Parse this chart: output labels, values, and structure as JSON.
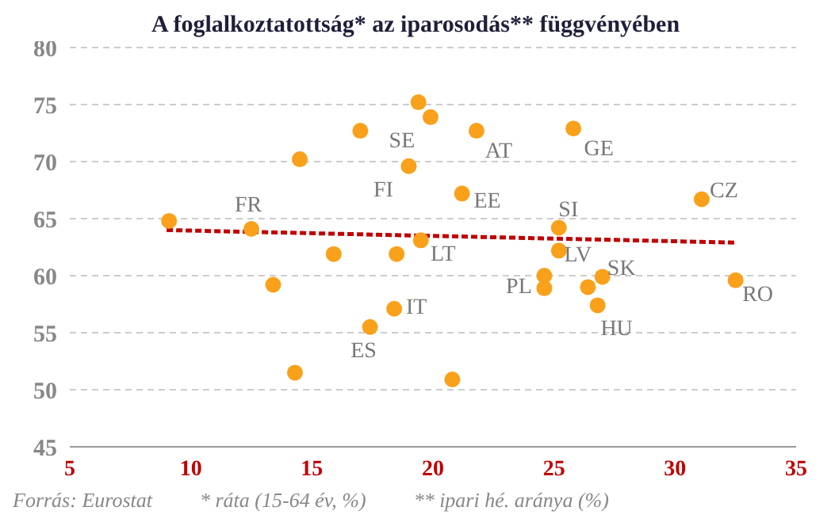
{
  "chart_data": {
    "type": "scatter",
    "title": "A foglalkoztatottság* az iparosodás** függvényében",
    "xlim": [
      5,
      35
    ],
    "xticks": [
      5,
      10,
      15,
      20,
      25,
      30,
      35
    ],
    "ylim": [
      45,
      80
    ],
    "yticks": [
      45,
      50,
      55,
      60,
      65,
      70,
      75,
      80
    ],
    "grid": "y",
    "legend": false,
    "marker": "circle",
    "series": [
      {
        "color": "#f9a11b",
        "x": [
          9.1,
          12.5,
          13.4,
          15.9,
          18.5,
          19.5,
          18.4,
          17.4,
          14.3,
          20.8,
          21.2,
          19.0,
          14.5,
          17.0,
          19.4,
          19.9,
          21.8,
          25.8,
          31.1,
          25.2,
          25.2,
          24.6,
          24.6,
          26.4,
          27.0,
          26.8,
          32.5
        ],
        "values": [
          64.8,
          64.1,
          59.2,
          61.9,
          61.9,
          63.1,
          57.1,
          55.5,
          51.5,
          50.9,
          67.2,
          69.6,
          70.2,
          72.7,
          75.2,
          73.9,
          72.7,
          72.9,
          66.7,
          64.2,
          62.2,
          60.0,
          58.9,
          59.0,
          59.9,
          57.4,
          59.6
        ]
      },
      {
        "type": "line",
        "color": "#c00000",
        "line_style": "dashed",
        "marker": "none",
        "x": [
          9,
          32.5
        ],
        "values": [
          64.0,
          62.9
        ]
      }
    ],
    "annotations": [
      {
        "text": "FR",
        "x": 12.5,
        "y": 64.1
      },
      {
        "text": "SE",
        "x": 19.9,
        "y": 73.9
      },
      {
        "text": "AT",
        "x": 21.8,
        "y": 72.7
      },
      {
        "text": "GE",
        "x": 25.8,
        "y": 72.9
      },
      {
        "text": "FI",
        "x": 19.0,
        "y": 69.6
      },
      {
        "text": "EE",
        "x": 21.2,
        "y": 67.2
      },
      {
        "text": "CZ",
        "x": 31.1,
        "y": 66.7
      },
      {
        "text": "SI",
        "x": 25.2,
        "y": 64.2
      },
      {
        "text": "LT",
        "x": 19.5,
        "y": 63.1
      },
      {
        "text": "PL",
        "x": 24.6,
        "y": 60.0
      },
      {
        "text": "LV",
        "x": 25.2,
        "y": 62.2
      },
      {
        "text": "SK",
        "x": 27.0,
        "y": 59.9
      },
      {
        "text": "RO",
        "x": 32.5,
        "y": 59.6
      },
      {
        "text": "HU",
        "x": 26.8,
        "y": 57.4
      },
      {
        "text": "IT",
        "x": 18.4,
        "y": 57.1
      },
      {
        "text": "ES",
        "x": 17.4,
        "y": 55.5
      },
      "Forrás: Eurostat",
      "* ráta (15-64 év, %)",
      "** ipari hé. aránya (%)"
    ]
  }
}
